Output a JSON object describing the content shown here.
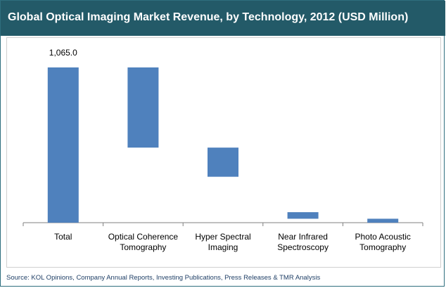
{
  "header": {
    "title": "Global Optical Imaging Market Revenue, by Technology, 2012 (USD Million)"
  },
  "colors": {
    "title_bg": "#235a68",
    "bar": "#4f81bd",
    "axis": "#808080"
  },
  "chart_data": {
    "type": "bar",
    "subtype": "waterfall",
    "title": "Global Optical Imaging Market Revenue, by Technology, 2012 (USD Million)",
    "categories": [
      [
        "Total"
      ],
      [
        "Optical Coherence",
        "Tomography"
      ],
      [
        "Hyper Spectral",
        "Imaging"
      ],
      [
        "Near Infrared",
        "Spectroscopy"
      ],
      [
        "Photo Acoustic",
        "Tomography"
      ]
    ],
    "values": [
      1065.0,
      550.0,
      200.0,
      45.0,
      27.0
    ],
    "bar_ranges": [
      [
        0,
        1065.0
      ],
      [
        515.0,
        1065.0
      ],
      [
        315.0,
        515.0
      ],
      [
        27.0,
        72.0
      ],
      [
        0,
        27.0
      ]
    ],
    "data_labels": [
      "1,065.0",
      null,
      null,
      null,
      null
    ],
    "ylim": [
      0,
      1065.0
    ],
    "xlabel": "",
    "ylabel": "",
    "grid": false,
    "legend": "none"
  },
  "footer": {
    "source": "Source: KOL Opinions, Company Annual Reports, Investing Publications, Press Releases & TMR Analysis"
  }
}
